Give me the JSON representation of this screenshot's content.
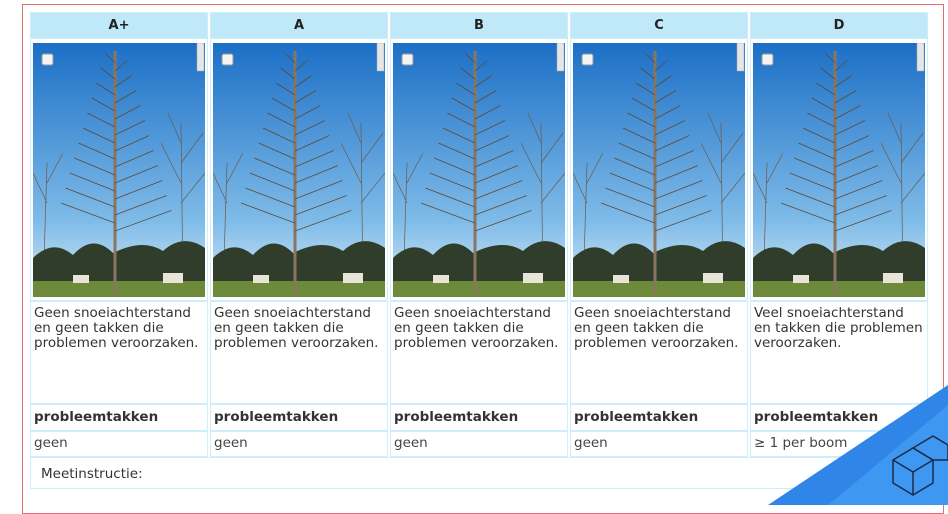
{
  "table": {
    "headers": [
      "A+",
      "A",
      "B",
      "C",
      "D"
    ],
    "descriptions": [
      "Geen snoeiachterstand en geen takken die problemen veroorzaken.",
      "Geen snoeiachterstand en geen takken die problemen veroorzaken.",
      "Geen snoeiachterstand en geen takken die problemen veroorzaken.",
      "Geen snoeiachterstand en geen takken die problemen veroorzaken.",
      "Veel snoeiachterstand en takken die problemen veroorzaken."
    ],
    "labels": [
      "probleemtakken",
      "probleemtakken",
      "probleemtakken",
      "probleemtakken",
      "probleemtakken"
    ],
    "values": [
      "geen",
      "geen",
      "geen",
      "geen",
      "≥ 1 per boom"
    ]
  },
  "footer": "Meetinstructie:"
}
